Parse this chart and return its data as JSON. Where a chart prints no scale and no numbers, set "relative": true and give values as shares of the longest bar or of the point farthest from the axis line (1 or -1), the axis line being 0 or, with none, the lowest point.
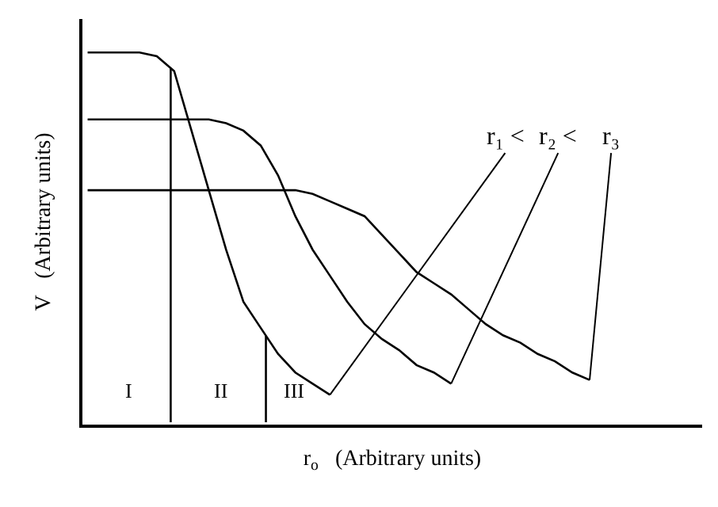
{
  "chart_data": {
    "type": "line",
    "relative": true,
    "xlabel": "r$_{o}$   (Arbitrary units)",
    "ylabel": "V   (Arbitrary units)",
    "categories": [
      null,
      null,
      null,
      null,
      null,
      null,
      null,
      null,
      null,
      null,
      null,
      null,
      null,
      null,
      null,
      null,
      null,
      null,
      null,
      null,
      null,
      null,
      null,
      null,
      null,
      null,
      null,
      null,
      null,
      null,
      null,
      null,
      null,
      null,
      null,
      null
    ],
    "series": [
      {
        "color": "#000000",
        "values": [
          1.0,
          1.0,
          1.0,
          1.0,
          0.99,
          0.95,
          0.79,
          0.63,
          0.47,
          0.33,
          0.26,
          0.19,
          0.14,
          0.11,
          0.08,
          null,
          null,
          null,
          null,
          null,
          null,
          null,
          null,
          null,
          null,
          null,
          null,
          null,
          null,
          null,
          null,
          null,
          null,
          null,
          null,
          null
        ]
      },
      {
        "color": "#000000",
        "values": [
          0.82,
          0.82,
          0.82,
          0.82,
          0.82,
          0.82,
          0.82,
          0.82,
          0.81,
          0.79,
          0.75,
          0.67,
          0.56,
          0.47,
          0.4,
          0.33,
          0.27,
          0.23,
          0.2,
          0.16,
          0.14,
          0.11,
          null,
          null,
          null,
          null,
          null,
          null,
          null,
          null,
          null,
          null,
          null,
          null,
          null,
          null
        ]
      },
      {
        "color": "#000000",
        "values": [
          0.63,
          0.63,
          0.63,
          0.63,
          0.63,
          0.63,
          0.63,
          0.63,
          0.63,
          0.63,
          0.63,
          0.63,
          0.63,
          0.62,
          0.6,
          0.58,
          0.56,
          0.51,
          0.46,
          0.41,
          0.38,
          0.35,
          0.31,
          0.27,
          0.24,
          0.22,
          0.19,
          0.17,
          0.14,
          0.12,
          null,
          null,
          null,
          null,
          null,
          null
        ]
      }
    ],
    "annotations": [
      "I",
      "II",
      "III",
      "r₁ <",
      "r₂ <",
      "r₃"
    ],
    "marker": "none",
    "line_style": "solid",
    "legend": false,
    "tick_labels": false
  }
}
